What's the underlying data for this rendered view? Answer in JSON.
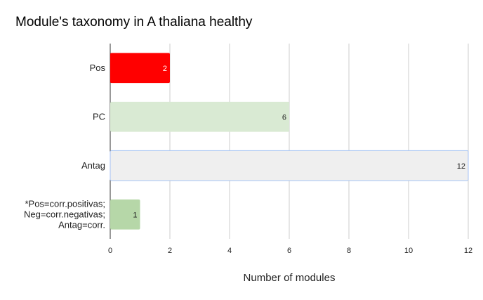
{
  "chart_data": {
    "type": "bar",
    "orientation": "horizontal",
    "title": "Module's taxonomy in A thaliana healthy",
    "xlabel": "Number of modules",
    "ylabel": "",
    "categories": [
      "Pos",
      "PC",
      "Antag",
      "*Pos=corr.positivas;\nNeg=corr.negativas;\nAntag=corr."
    ],
    "values": [
      2,
      6,
      12,
      1
    ],
    "data_labels": [
      "2",
      "6",
      "12",
      "1"
    ],
    "colors": [
      "#ff0000",
      "#d9ead3",
      "#efefef",
      "#b6d7a8"
    ],
    "highlight_border": "#a4c2f4",
    "highlighted_category": "Antag",
    "xlim": [
      0,
      12
    ],
    "x_ticks": [
      0,
      2,
      4,
      6,
      8,
      10,
      12
    ],
    "grid": true,
    "legend": "none"
  }
}
